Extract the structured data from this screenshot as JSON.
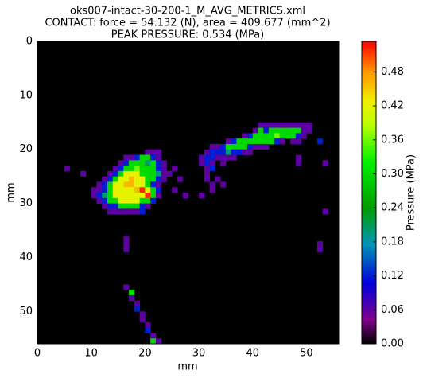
{
  "chart_data": {
    "type": "heatmap",
    "title": "oks007-intact-30-200-1_M_AVG_METRICS.xml",
    "subtitle": [
      "CONTACT: force = 54.132 (N), area = 409.677 (mm^2)",
      "PEAK PRESSURE: 0.534 (MPa)"
    ],
    "xlabel": "mm",
    "ylabel": "mm",
    "colorbar_label": "Pressure (MPa)",
    "colormap": "nipy_spectral",
    "xlim": [
      0,
      56
    ],
    "ylim": [
      56,
      0
    ],
    "xticks": [
      0,
      10,
      20,
      30,
      40,
      50
    ],
    "yticks": [
      0,
      10,
      20,
      30,
      40,
      50
    ],
    "clim": [
      0,
      0.534
    ],
    "cticks": [
      {
        "value": 0,
        "label": "0.00"
      },
      {
        "value": 0.06,
        "label": "0.06"
      },
      {
        "value": 0.12,
        "label": "0.12"
      },
      {
        "value": 0.18,
        "label": "0.18"
      },
      {
        "value": 0.24,
        "label": "0.24"
      },
      {
        "value": 0.3,
        "label": "0.30"
      },
      {
        "value": 0.36,
        "label": "0.36"
      },
      {
        "value": 0.42,
        "label": "0.42"
      },
      {
        "value": 0.48,
        "label": "0.48"
      }
    ],
    "cells": [
      [
        41,
        15,
        0.06
      ],
      [
        42,
        15,
        0.06
      ],
      [
        43,
        15,
        0.06
      ],
      [
        44,
        15,
        0.06
      ],
      [
        45,
        15,
        0.06
      ],
      [
        46,
        15,
        0.06
      ],
      [
        47,
        15,
        0.06
      ],
      [
        48,
        15,
        0.06
      ],
      [
        49,
        15,
        0.06
      ],
      [
        50,
        15,
        0.06
      ],
      [
        40,
        16,
        0.06
      ],
      [
        41,
        16,
        0.3
      ],
      [
        42,
        16,
        0.12
      ],
      [
        43,
        16,
        0.3
      ],
      [
        44,
        16,
        0.3
      ],
      [
        45,
        16,
        0.3
      ],
      [
        46,
        16,
        0.3
      ],
      [
        47,
        16,
        0.3
      ],
      [
        48,
        16,
        0.3
      ],
      [
        49,
        16,
        0.06
      ],
      [
        50,
        16,
        0.06
      ],
      [
        38,
        17,
        0.06
      ],
      [
        39,
        17,
        0.12
      ],
      [
        40,
        17,
        0.3
      ],
      [
        41,
        17,
        0.3
      ],
      [
        42,
        17,
        0.3
      ],
      [
        43,
        17,
        0.3
      ],
      [
        44,
        17,
        0.36
      ],
      [
        45,
        17,
        0.3
      ],
      [
        46,
        17,
        0.3
      ],
      [
        47,
        17,
        0.3
      ],
      [
        48,
        17,
        0.12
      ],
      [
        49,
        17,
        0.06
      ],
      [
        35,
        18,
        0.06
      ],
      [
        36,
        18,
        0.12
      ],
      [
        37,
        18,
        0.3
      ],
      [
        38,
        18,
        0.3
      ],
      [
        39,
        18,
        0.3
      ],
      [
        40,
        18,
        0.3
      ],
      [
        41,
        18,
        0.3
      ],
      [
        42,
        18,
        0.3
      ],
      [
        43,
        18,
        0.3
      ],
      [
        44,
        18,
        0.12
      ],
      [
        45,
        18,
        0.06
      ],
      [
        47,
        18,
        0.06
      ],
      [
        48,
        18,
        0.06
      ],
      [
        52,
        18,
        0.12
      ],
      [
        32,
        19,
        0.06
      ],
      [
        33,
        19,
        0.06
      ],
      [
        34,
        19,
        0.12
      ],
      [
        35,
        19,
        0.3
      ],
      [
        36,
        19,
        0.3
      ],
      [
        37,
        19,
        0.3
      ],
      [
        38,
        19,
        0.3
      ],
      [
        39,
        19,
        0.12
      ],
      [
        40,
        19,
        0.06
      ],
      [
        41,
        19,
        0.06
      ],
      [
        42,
        19,
        0.06
      ],
      [
        20,
        20,
        0.06
      ],
      [
        21,
        20,
        0.06
      ],
      [
        22,
        20,
        0.06
      ],
      [
        31,
        20,
        0.06
      ],
      [
        32,
        20,
        0.12
      ],
      [
        33,
        20,
        0.12
      ],
      [
        34,
        20,
        0.12
      ],
      [
        35,
        20,
        0.2
      ],
      [
        36,
        20,
        0.12
      ],
      [
        37,
        20,
        0.12
      ],
      [
        38,
        20,
        0.06
      ],
      [
        39,
        20,
        0.06
      ],
      [
        16,
        21,
        0.06
      ],
      [
        17,
        21,
        0.06
      ],
      [
        18,
        21,
        0.12
      ],
      [
        19,
        21,
        0.3
      ],
      [
        20,
        21,
        0.3
      ],
      [
        21,
        21,
        0.12
      ],
      [
        22,
        21,
        0.06
      ],
      [
        30,
        21,
        0.06
      ],
      [
        31,
        21,
        0.12
      ],
      [
        32,
        21,
        0.12
      ],
      [
        33,
        21,
        0.06
      ],
      [
        34,
        21,
        0.06
      ],
      [
        35,
        21,
        0.06
      ],
      [
        36,
        21,
        0.06
      ],
      [
        48,
        21,
        0.06
      ],
      [
        15,
        22,
        0.06
      ],
      [
        16,
        22,
        0.12
      ],
      [
        17,
        22,
        0.3
      ],
      [
        18,
        22,
        0.3
      ],
      [
        19,
        22,
        0.3
      ],
      [
        20,
        22,
        0.2
      ],
      [
        21,
        22,
        0.3
      ],
      [
        22,
        22,
        0.12
      ],
      [
        23,
        22,
        0.06
      ],
      [
        30,
        22,
        0.06
      ],
      [
        31,
        22,
        0.12
      ],
      [
        32,
        22,
        0.06
      ],
      [
        34,
        22,
        0.06
      ],
      [
        48,
        22,
        0.06
      ],
      [
        53,
        22,
        0.06
      ],
      [
        5,
        23,
        0.06
      ],
      [
        14,
        23,
        0.06
      ],
      [
        15,
        23,
        0.12
      ],
      [
        16,
        23,
        0.3
      ],
      [
        17,
        23,
        0.3
      ],
      [
        18,
        23,
        0.36
      ],
      [
        19,
        23,
        0.3
      ],
      [
        20,
        23,
        0.3
      ],
      [
        21,
        23,
        0.3
      ],
      [
        22,
        23,
        0.12
      ],
      [
        23,
        23,
        0.06
      ],
      [
        25,
        23,
        0.06
      ],
      [
        31,
        23,
        0.06
      ],
      [
        32,
        23,
        0.12
      ],
      [
        8,
        24,
        0.06
      ],
      [
        13,
        24,
        0.06
      ],
      [
        14,
        24,
        0.12
      ],
      [
        15,
        24,
        0.3
      ],
      [
        16,
        24,
        0.42
      ],
      [
        17,
        24,
        0.42
      ],
      [
        18,
        24,
        0.42
      ],
      [
        19,
        24,
        0.3
      ],
      [
        20,
        24,
        0.3
      ],
      [
        21,
        24,
        0.3
      ],
      [
        22,
        24,
        0.2
      ],
      [
        23,
        24,
        0.06
      ],
      [
        24,
        24,
        0.06
      ],
      [
        31,
        24,
        0.06
      ],
      [
        12,
        25,
        0.06
      ],
      [
        13,
        25,
        0.12
      ],
      [
        14,
        25,
        0.3
      ],
      [
        15,
        25,
        0.42
      ],
      [
        16,
        25,
        0.42
      ],
      [
        17,
        25,
        0.46
      ],
      [
        18,
        25,
        0.42
      ],
      [
        19,
        25,
        0.42
      ],
      [
        20,
        25,
        0.3
      ],
      [
        21,
        25,
        0.3
      ],
      [
        22,
        25,
        0.12
      ],
      [
        23,
        25,
        0.06
      ],
      [
        26,
        25,
        0.06
      ],
      [
        31,
        25,
        0.06
      ],
      [
        33,
        25,
        0.06
      ],
      [
        11,
        26,
        0.06
      ],
      [
        12,
        26,
        0.12
      ],
      [
        13,
        26,
        0.3
      ],
      [
        14,
        26,
        0.42
      ],
      [
        15,
        26,
        0.42
      ],
      [
        16,
        26,
        0.46
      ],
      [
        17,
        26,
        0.46
      ],
      [
        18,
        26,
        0.42
      ],
      [
        19,
        26,
        0.42
      ],
      [
        20,
        26,
        0.3
      ],
      [
        21,
        26,
        0.12
      ],
      [
        22,
        26,
        0.06
      ],
      [
        32,
        26,
        0.06
      ],
      [
        34,
        26,
        0.06
      ],
      [
        10,
        27,
        0.06
      ],
      [
        11,
        27,
        0.06
      ],
      [
        12,
        27,
        0.12
      ],
      [
        13,
        27,
        0.3
      ],
      [
        14,
        27,
        0.42
      ],
      [
        15,
        27,
        0.42
      ],
      [
        16,
        27,
        0.42
      ],
      [
        17,
        27,
        0.42
      ],
      [
        18,
        27,
        0.46
      ],
      [
        19,
        27,
        0.52
      ],
      [
        20,
        27,
        0.42
      ],
      [
        21,
        27,
        0.3
      ],
      [
        22,
        27,
        0.12
      ],
      [
        25,
        27,
        0.06
      ],
      [
        32,
        27,
        0.06
      ],
      [
        10,
        28,
        0.06
      ],
      [
        11,
        28,
        0.12
      ],
      [
        12,
        28,
        0.2
      ],
      [
        13,
        28,
        0.3
      ],
      [
        14,
        28,
        0.42
      ],
      [
        15,
        28,
        0.42
      ],
      [
        16,
        28,
        0.42
      ],
      [
        17,
        28,
        0.42
      ],
      [
        18,
        28,
        0.42
      ],
      [
        19,
        28,
        0.42
      ],
      [
        20,
        28,
        0.52
      ],
      [
        21,
        28,
        0.3
      ],
      [
        22,
        28,
        0.06
      ],
      [
        27,
        28,
        0.06
      ],
      [
        30,
        28,
        0.06
      ],
      [
        11,
        29,
        0.06
      ],
      [
        12,
        29,
        0.12
      ],
      [
        13,
        29,
        0.3
      ],
      [
        14,
        29,
        0.3
      ],
      [
        15,
        29,
        0.42
      ],
      [
        16,
        29,
        0.42
      ],
      [
        17,
        29,
        0.42
      ],
      [
        18,
        29,
        0.42
      ],
      [
        19,
        29,
        0.3
      ],
      [
        20,
        29,
        0.3
      ],
      [
        21,
        29,
        0.12
      ],
      [
        12,
        30,
        0.06
      ],
      [
        13,
        30,
        0.12
      ],
      [
        14,
        30,
        0.12
      ],
      [
        15,
        30,
        0.3
      ],
      [
        16,
        30,
        0.3
      ],
      [
        17,
        30,
        0.3
      ],
      [
        18,
        30,
        0.3
      ],
      [
        19,
        30,
        0.12
      ],
      [
        20,
        30,
        0.06
      ],
      [
        13,
        31,
        0.06
      ],
      [
        14,
        31,
        0.06
      ],
      [
        15,
        31,
        0.06
      ],
      [
        16,
        31,
        0.06
      ],
      [
        17,
        31,
        0.06
      ],
      [
        18,
        31,
        0.06
      ],
      [
        19,
        31,
        0.12
      ],
      [
        53,
        31,
        0.06
      ],
      [
        16,
        36,
        0.06
      ],
      [
        16,
        37,
        0.06
      ],
      [
        52,
        37,
        0.06
      ],
      [
        16,
        38,
        0.06
      ],
      [
        52,
        38,
        0.06
      ],
      [
        16,
        45,
        0.06
      ],
      [
        17,
        46,
        0.3
      ],
      [
        17,
        47,
        0.06
      ],
      [
        18,
        48,
        0.06
      ],
      [
        18,
        49,
        0.12
      ],
      [
        19,
        50,
        0.06
      ],
      [
        19,
        51,
        0.06
      ],
      [
        20,
        52,
        0.06
      ],
      [
        20,
        53,
        0.12
      ],
      [
        21,
        54,
        0.06
      ],
      [
        21,
        55,
        0.3
      ],
      [
        22,
        55,
        0.06
      ]
    ]
  }
}
